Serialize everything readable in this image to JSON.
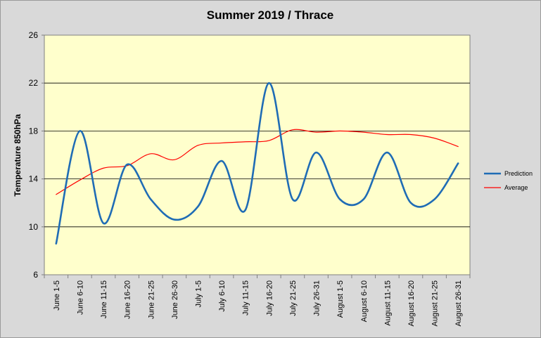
{
  "chart_data": {
    "type": "line",
    "title": "Summer 2019 / Thrace",
    "xlabel": "",
    "ylabel": "Temperature 850hPa",
    "ylim": [
      6,
      26
    ],
    "yticks": [
      6,
      10,
      14,
      18,
      22,
      26
    ],
    "grid": true,
    "legend_position": "right",
    "smooth": true,
    "background_color": "#ffffcc",
    "categories": [
      "June 1-5",
      "June 6-10",
      "June 11-15",
      "June 16-20",
      "June 21-25",
      "June 26-30",
      "July 1-5",
      "July 6-10",
      "July 11-15",
      "July 16-20",
      "July 21-25",
      "July 26-31",
      "August 1-5",
      "August 6-10",
      "August 11-15",
      "August 16-20",
      "August 21-25",
      "August 26-31"
    ],
    "series": [
      {
        "name": "Prediction",
        "color": "#1f6cb5",
        "values": [
          8.6,
          18.0,
          10.3,
          15.2,
          12.3,
          10.6,
          11.7,
          15.5,
          11.4,
          22.0,
          12.3,
          16.2,
          12.3,
          12.3,
          16.2,
          12.0,
          12.3,
          15.3
        ]
      },
      {
        "name": "Average",
        "color": "#ff0000",
        "values": [
          12.7,
          13.9,
          14.9,
          15.1,
          16.1,
          15.6,
          16.8,
          17.0,
          17.1,
          17.2,
          18.1,
          17.9,
          18.0,
          17.9,
          17.7,
          17.7,
          17.4,
          16.7
        ]
      }
    ]
  }
}
